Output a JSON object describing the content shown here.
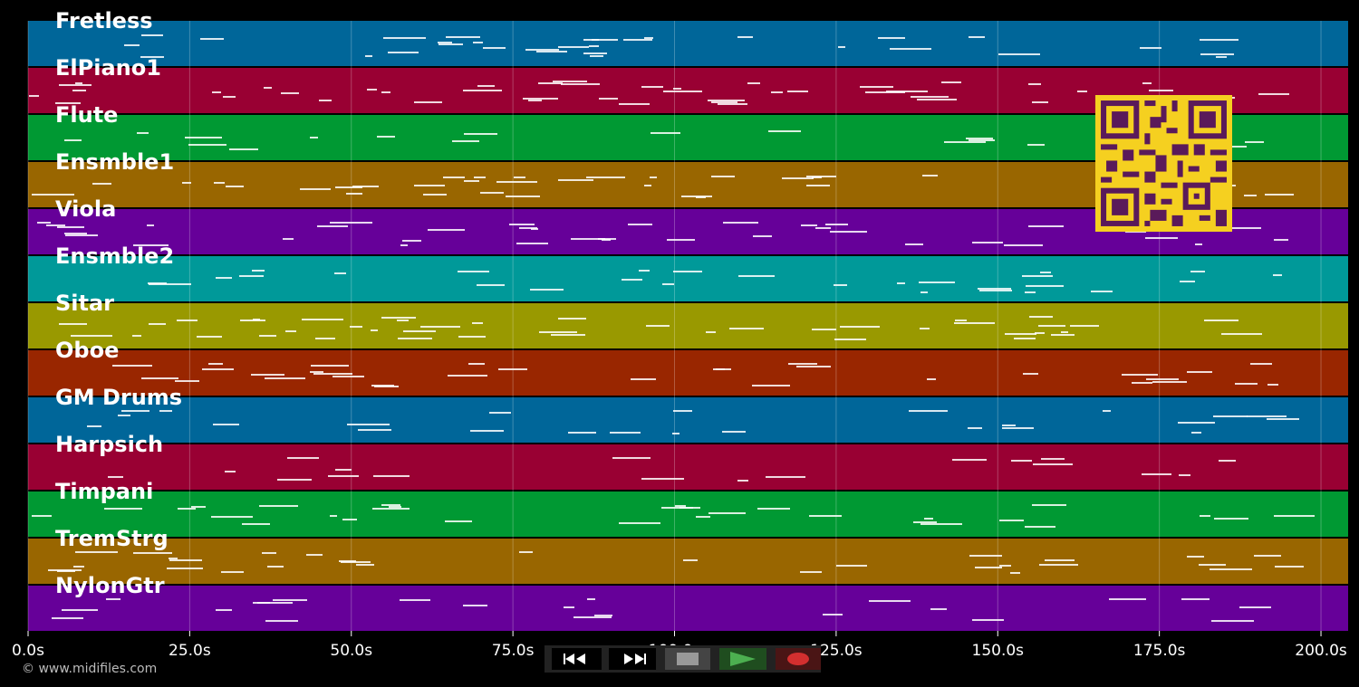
{
  "tracks": [
    {
      "label": "Fretless",
      "color": "#006699"
    },
    {
      "label": "ElPiano1",
      "color": "#990033"
    },
    {
      "label": "Flute",
      "color": "#009933"
    },
    {
      "label": "Ensmble1",
      "color": "#996600"
    },
    {
      "label": "Viola",
      "color": "#660099"
    },
    {
      "label": "Ensmble2",
      "color": "#009999"
    },
    {
      "label": "Sitar",
      "color": "#999900"
    },
    {
      "label": "Oboe",
      "color": "#992600"
    },
    {
      "label": "GM Drums",
      "color": "#006699"
    },
    {
      "label": "Harpsich",
      "color": "#990033"
    },
    {
      "label": "Timpani",
      "color": "#009933"
    },
    {
      "label": "TremStrg",
      "color": "#996600"
    },
    {
      "label": "NylonGtr",
      "color": "#660099"
    }
  ],
  "timeline": {
    "min_seconds": 0,
    "max_seconds": 204.2,
    "ticks": [
      {
        "value": 0,
        "label": "0.0s"
      },
      {
        "value": 25,
        "label": "25.0s"
      },
      {
        "value": 50,
        "label": "50.0s"
      },
      {
        "value": 75,
        "label": "75.0s"
      },
      {
        "value": 100,
        "label": "100.0s"
      },
      {
        "value": 125,
        "label": "125.0s"
      },
      {
        "value": 150,
        "label": "150.0s"
      },
      {
        "value": 175,
        "label": "175.0s"
      },
      {
        "value": 200,
        "label": "200.0s"
      }
    ]
  },
  "transport": {
    "rewind_icon": "rewind-icon",
    "forward_icon": "fast-forward-icon",
    "stop_icon": "stop-icon",
    "play_icon": "play-icon",
    "record_icon": "record-icon",
    "play_color": "#4CAF50",
    "record_color": "#d32f2f"
  },
  "footer": {
    "copyright": "© www.midifiles.com"
  },
  "qr_code": {
    "icon": "qr-code-icon",
    "color": "#f5d020"
  }
}
